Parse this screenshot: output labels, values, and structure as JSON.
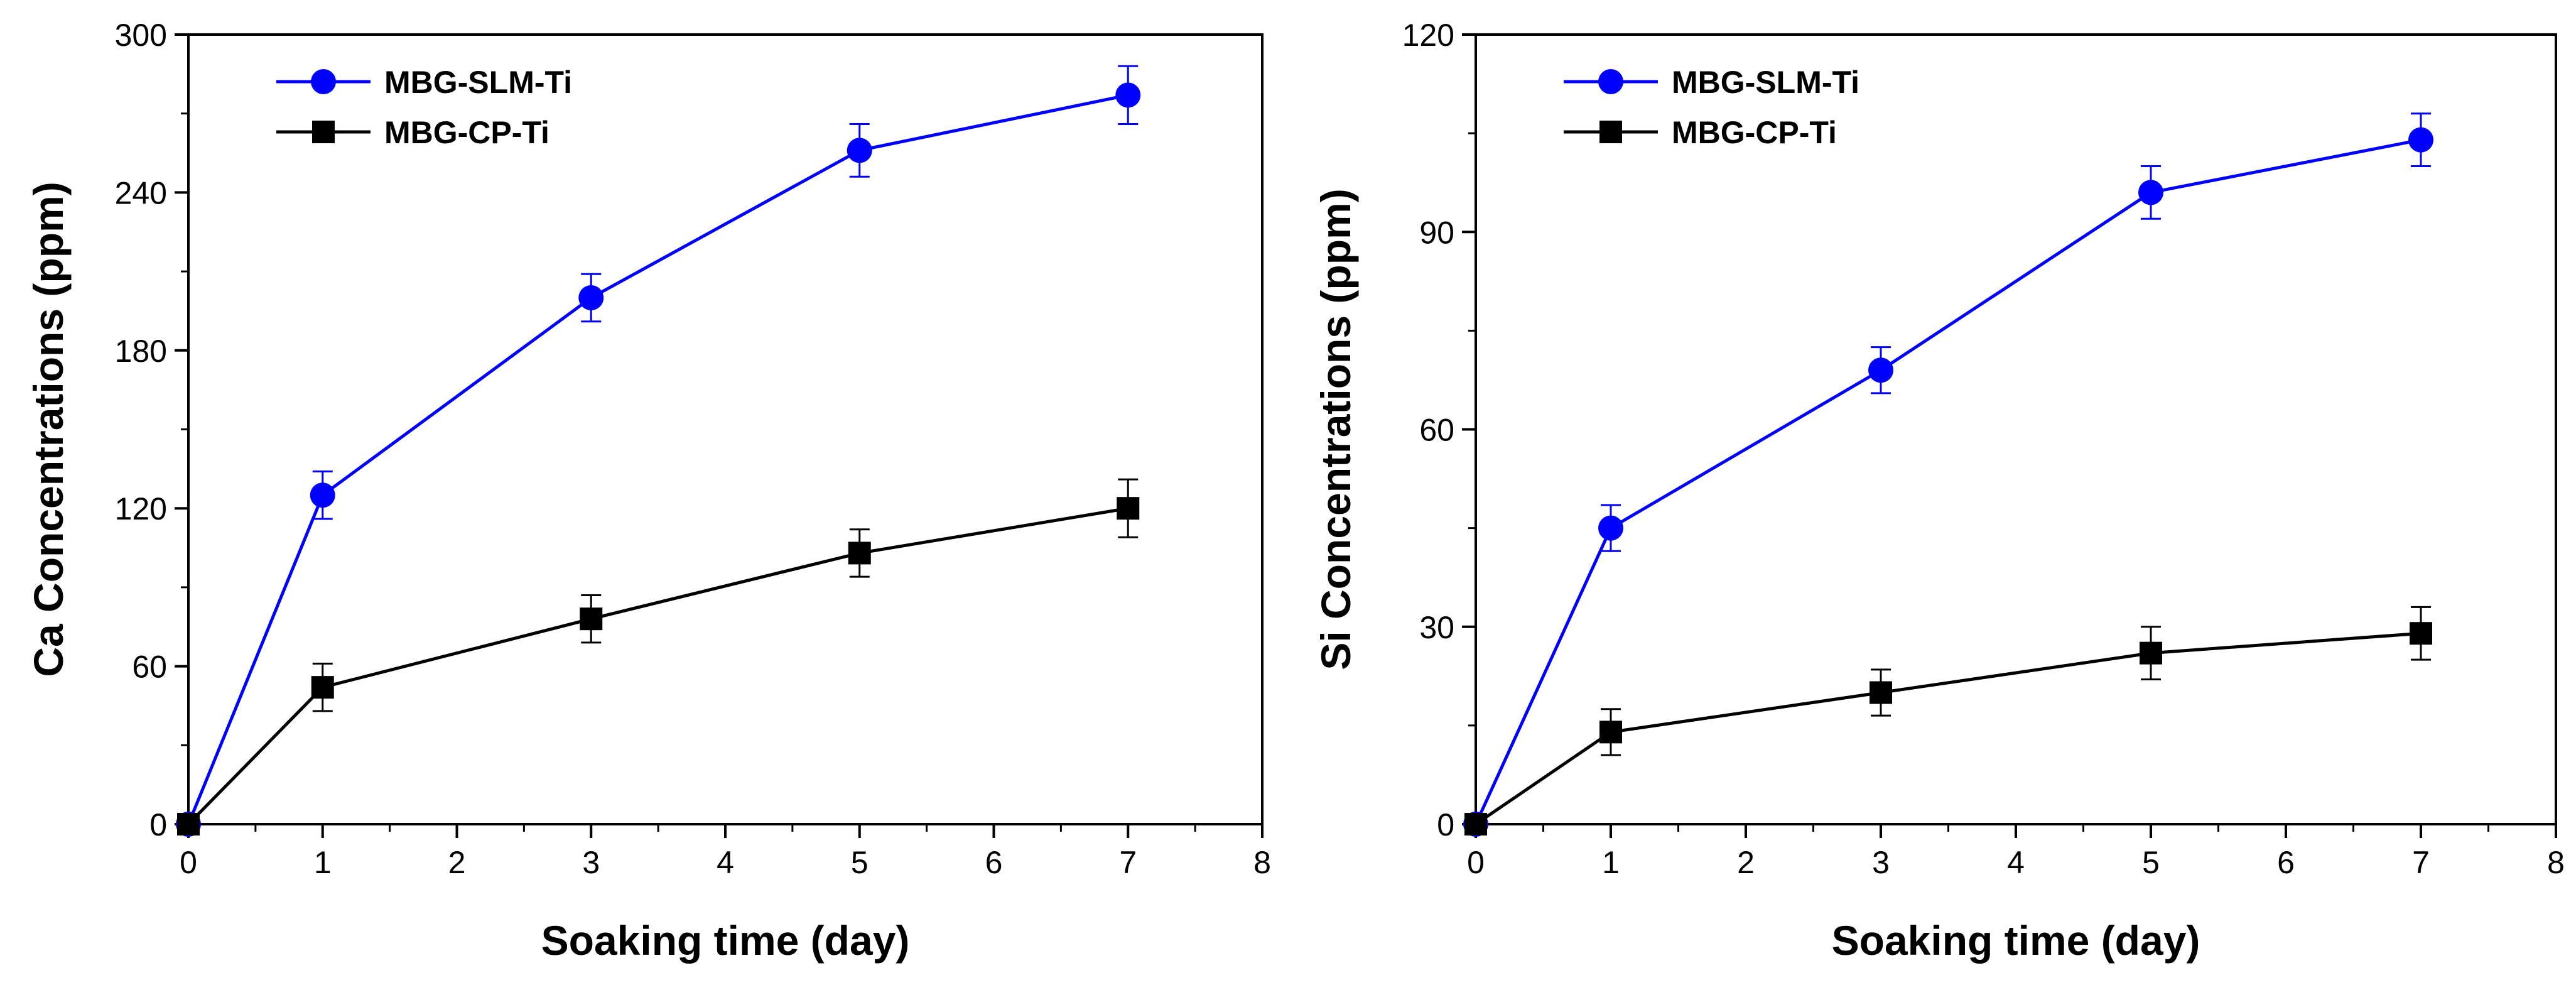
{
  "chart_data": [
    {
      "type": "line",
      "xlabel": "Soaking time (day)",
      "ylabel": "Ca Concentrations (ppm)",
      "xlim": [
        0,
        8
      ],
      "ylim": [
        0,
        300
      ],
      "xticks": [
        0,
        1,
        2,
        3,
        4,
        5,
        6,
        7,
        8
      ],
      "yticks": [
        0,
        60,
        120,
        180,
        240,
        300
      ],
      "legend_position": "top-left",
      "grid": false,
      "series": [
        {
          "name": "MBG-SLM-Ti",
          "color": "#0000ff",
          "marker": "circle",
          "x": [
            0,
            1,
            3,
            5,
            7
          ],
          "y": [
            0,
            125,
            200,
            256,
            277
          ],
          "err": [
            0,
            9,
            9,
            10,
            11
          ]
        },
        {
          "name": "MBG-CP-Ti",
          "color": "#000000",
          "marker": "square",
          "x": [
            0,
            1,
            3,
            5,
            7
          ],
          "y": [
            0,
            52,
            78,
            103,
            120
          ],
          "err": [
            0,
            9,
            9,
            9,
            11
          ]
        }
      ]
    },
    {
      "type": "line",
      "xlabel": "Soaking time (day)",
      "ylabel": "Si Concentrations (ppm)",
      "xlim": [
        0,
        8
      ],
      "ylim": [
        0,
        120
      ],
      "xticks": [
        0,
        1,
        2,
        3,
        4,
        5,
        6,
        7,
        8
      ],
      "yticks": [
        0,
        30,
        60,
        90,
        120
      ],
      "legend_position": "top-left",
      "grid": false,
      "series": [
        {
          "name": "MBG-SLM-Ti",
          "color": "#0000ff",
          "marker": "circle",
          "x": [
            0,
            1,
            3,
            5,
            7
          ],
          "y": [
            0,
            45,
            69,
            96,
            104
          ],
          "err": [
            0,
            3.5,
            3.5,
            4,
            4
          ]
        },
        {
          "name": "MBG-CP-Ti",
          "color": "#000000",
          "marker": "square",
          "x": [
            0,
            1,
            3,
            5,
            7
          ],
          "y": [
            0,
            14,
            20,
            26,
            29
          ],
          "err": [
            0,
            3.5,
            3.5,
            4,
            4
          ]
        }
      ]
    }
  ]
}
